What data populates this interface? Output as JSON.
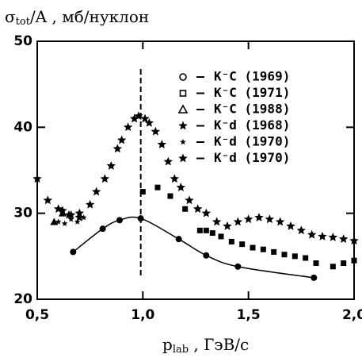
{
  "chart_data": {
    "type": "scatter",
    "y_label": [
      "σ",
      "tot",
      "/A  ,  мб/нуклон"
    ],
    "x_label": [
      "p",
      "lab",
      "  ,   ГэВ/с"
    ],
    "xlim": [
      0.5,
      2.0
    ],
    "xticks": [
      {
        "value": 0.5,
        "label": "0,5"
      },
      {
        "value": 1.0,
        "label": "1,0"
      },
      {
        "value": 1.5,
        "label": "1,5"
      },
      {
        "value": 2.0,
        "label": "2,0"
      }
    ],
    "ylim": [
      20,
      50
    ],
    "yticks": [
      20,
      30,
      40,
      50
    ],
    "reference_line_x": 0.99,
    "series": [
      {
        "name": "K⁻C (1969)",
        "color": "#000",
        "marker": "circle",
        "line": true,
        "x": [
          0.67,
          0.81,
          0.89,
          0.99,
          1.17,
          1.3,
          1.45,
          1.81
        ],
        "values": [
          25.5,
          28.2,
          29.2,
          29.4,
          27.0,
          25.1,
          23.8,
          22.5
        ]
      },
      {
        "name": "K⁻C (1971)",
        "color": "#000",
        "marker": "square",
        "x": [
          1.0,
          1.07,
          1.13,
          1.2,
          1.27,
          1.3,
          1.33,
          1.37,
          1.42,
          1.47,
          1.52,
          1.57,
          1.62,
          1.67,
          1.72,
          1.77,
          1.82,
          1.9,
          1.95,
          2.0
        ],
        "values": [
          32.5,
          33.0,
          32.0,
          30.5,
          28.0,
          28.0,
          27.7,
          27.3,
          26.7,
          26.4,
          26.0,
          25.8,
          25.5,
          25.2,
          25.0,
          24.8,
          24.2,
          23.8,
          24.2,
          24.5
        ]
      },
      {
        "name": "K⁻C (1988)",
        "color": "#000",
        "marker": "triangle",
        "x": [
          0.58,
          0.62
        ],
        "values": [
          29.0,
          30.0
        ]
      },
      {
        "name": "K⁻d (1968)",
        "color": "#000",
        "marker": "star",
        "x": [
          0.5,
          0.55,
          0.6,
          0.65,
          0.7,
          0.75,
          0.78,
          0.82,
          0.85,
          0.88,
          0.9,
          0.93,
          0.96,
          0.98,
          1.01,
          1.03,
          1.06,
          1.09,
          1.12,
          1.15,
          1.18,
          1.22,
          1.26,
          1.3,
          1.35,
          1.4,
          1.45,
          1.5,
          1.55,
          1.6,
          1.65,
          1.7,
          1.75,
          1.8,
          1.85,
          1.9,
          1.95,
          2.0
        ],
        "values": [
          34.0,
          31.5,
          30.5,
          29.8,
          30.0,
          31.0,
          32.5,
          34.0,
          35.5,
          37.5,
          38.5,
          40.0,
          41.0,
          41.3,
          41.0,
          40.5,
          39.5,
          38.0,
          36.0,
          34.0,
          33.0,
          31.5,
          30.5,
          30.0,
          29.0,
          28.5,
          29.0,
          29.3,
          29.5,
          29.3,
          29.0,
          28.5,
          28.0,
          27.5,
          27.3,
          27.2,
          27.0,
          26.8
        ]
      },
      {
        "name": "K⁻d (1970)",
        "color": "#000",
        "marker": "smallstar",
        "x": [
          0.6,
          0.63,
          0.66,
          0.69,
          0.72
        ],
        "values": [
          29.0,
          28.8,
          29.3,
          29.0,
          29.5
        ]
      },
      {
        "name": "K⁻d (1970)",
        "color": "#000",
        "marker": "star",
        "x": [
          0.62,
          0.66,
          0.7
        ],
        "values": [
          30.3,
          29.8,
          29.5
        ]
      }
    ]
  }
}
